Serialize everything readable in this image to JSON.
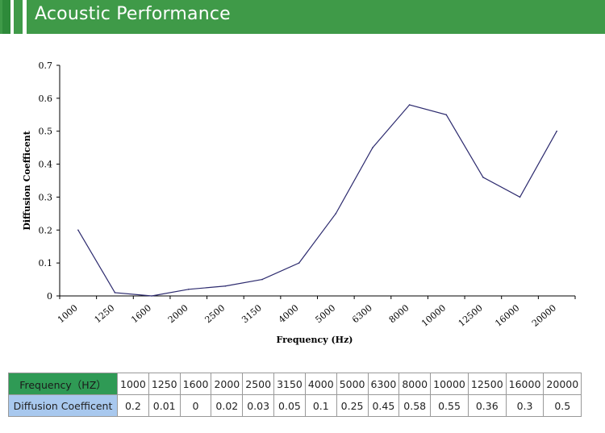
{
  "header": {
    "title": "Acoustic Performance"
  },
  "chart_data": {
    "type": "line",
    "categories": [
      "1000",
      "1250",
      "1600",
      "2000",
      "2500",
      "3150",
      "4000",
      "5000",
      "6300",
      "8000",
      "10000",
      "12500",
      "16000",
      "20000"
    ],
    "values": [
      0.2,
      0.01,
      0,
      0.02,
      0.03,
      0.05,
      0.1,
      0.25,
      0.45,
      0.58,
      0.55,
      0.36,
      0.3,
      0.5
    ],
    "xlabel": "Frequency (Hz)",
    "ylabel": "Diffusion Coefficent",
    "ylim": [
      0,
      0.7
    ],
    "yticks": [
      "0",
      "0.1",
      "0.2",
      "0.3",
      "0.4",
      "0.5",
      "0.6",
      "0.7"
    ],
    "series_color": "#2c2a6e",
    "grid": false
  },
  "table": {
    "row1_header": "Frequency（HZ）",
    "row2_header": "Diffusion Coefficent",
    "frequencies": [
      "1000",
      "1250",
      "1600",
      "2000",
      "2500",
      "3150",
      "4000",
      "5000",
      "6300",
      "8000",
      "10000",
      "12500",
      "16000",
      "20000"
    ],
    "coefficients": [
      "0.2",
      "0.01",
      "0",
      "0.02",
      "0.03",
      "0.05",
      "0.1",
      "0.25",
      "0.45",
      "0.58",
      "0.55",
      "0.36",
      "0.3",
      "0.5"
    ]
  }
}
